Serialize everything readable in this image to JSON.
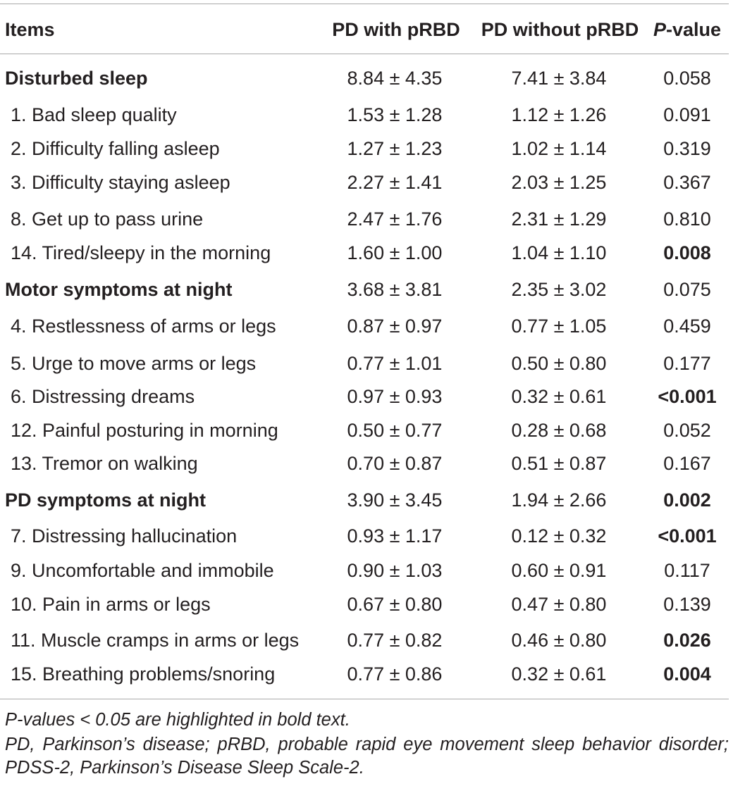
{
  "header": {
    "items": "Items",
    "with_prbd": "PD with pRBD",
    "without_prbd": "PD without pRBD",
    "p_italic": "P",
    "p_rest": "-value"
  },
  "rows": [
    {
      "item": "Disturbed sleep",
      "section": true,
      "with": "8.84 ± 4.35",
      "without": "7.41 ± 3.84",
      "p": "0.058",
      "p_bold": false
    },
    {
      "item": "1. Bad sleep quality",
      "section": false,
      "with": "1.53 ± 1.28",
      "without": "1.12 ± 1.26",
      "p": "0.091",
      "p_bold": false
    },
    {
      "item": "2. Difficulty falling asleep",
      "section": false,
      "with": "1.27 ± 1.23",
      "without": "1.02 ± 1.14",
      "p": "0.319",
      "p_bold": false
    },
    {
      "item": "3. Difficulty staying asleep",
      "section": false,
      "with": "2.27 ± 1.41",
      "without": "2.03 ± 1.25",
      "p": "0.367",
      "p_bold": false
    },
    {
      "item": "8. Get up to pass urine",
      "section": false,
      "with": "2.47 ± 1.76",
      "without": "2.31 ± 1.29",
      "p": "0.810",
      "p_bold": false
    },
    {
      "item": "14. Tired/sleepy in the morning",
      "section": false,
      "with": "1.60 ± 1.00",
      "without": "1.04 ± 1.10",
      "p": "0.008",
      "p_bold": true
    },
    {
      "item": "Motor symptoms at night",
      "section": true,
      "with": "3.68 ± 3.81",
      "without": "2.35 ± 3.02",
      "p": "0.075",
      "p_bold": false
    },
    {
      "item": "4. Restlessness of arms or legs",
      "section": false,
      "with": "0.87 ± 0.97",
      "without": "0.77 ± 1.05",
      "p": "0.459",
      "p_bold": false
    },
    {
      "item": "5. Urge to move arms or legs",
      "section": false,
      "with": "0.77 ± 1.01",
      "without": "0.50 ± 0.80",
      "p": "0.177",
      "p_bold": false
    },
    {
      "item": "6. Distressing dreams",
      "section": false,
      "with": "0.97 ± 0.93",
      "without": "0.32 ± 0.61",
      "p": "<0.001",
      "p_bold": true
    },
    {
      "item": "12. Painful posturing in morning",
      "section": false,
      "with": "0.50 ± 0.77",
      "without": "0.28 ± 0.68",
      "p": "0.052",
      "p_bold": false
    },
    {
      "item": "13. Tremor on walking",
      "section": false,
      "with": "0.70 ± 0.87",
      "without": "0.51 ± 0.87",
      "p": "0.167",
      "p_bold": false
    },
    {
      "item": "PD symptoms at night",
      "section": true,
      "with": "3.90 ± 3.45",
      "without": "1.94 ± 2.66",
      "p": "0.002",
      "p_bold": true
    },
    {
      "item": "7. Distressing hallucination",
      "section": false,
      "with": "0.93 ± 1.17",
      "without": "0.12 ± 0.32",
      "p": "<0.001",
      "p_bold": true
    },
    {
      "item": "9. Uncomfortable and immobile",
      "section": false,
      "with": "0.90 ± 1.03",
      "without": "0.60 ± 0.91",
      "p": "0.117",
      "p_bold": false
    },
    {
      "item": "10. Pain in arms or legs",
      "section": false,
      "with": "0.67 ± 0.80",
      "without": "0.47 ± 0.80",
      "p": "0.139",
      "p_bold": false
    },
    {
      "item": "11. Muscle cramps in arms or legs",
      "section": false,
      "with": "0.77 ± 0.82",
      "without": "0.46 ± 0.80",
      "p": "0.026",
      "p_bold": true
    },
    {
      "item": "15. Breathing problems/snoring",
      "section": false,
      "with": "0.77 ± 0.86",
      "without": "0.32 ± 0.61",
      "p": "0.004",
      "p_bold": true
    }
  ],
  "footnotes": {
    "note1": "P-values < 0.05 are highlighted in bold text.",
    "note2": "PD, Parkinson’s disease; pRBD, probable rapid eye movement sleep behavior disorder; PDSS-2, Parkinson’s Disease Sleep Scale-2."
  }
}
